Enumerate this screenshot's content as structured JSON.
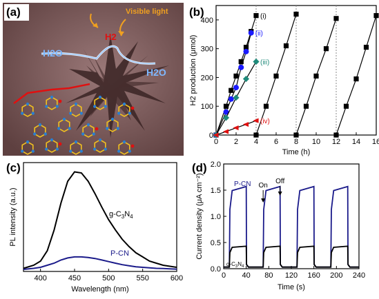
{
  "figure": {
    "panel_a": {
      "label": "(a)",
      "annotation_light": "Visible light",
      "annotation_h2": "H2",
      "annotation_h2o_left": "H2O",
      "annotation_h2o_right": "H2O",
      "colors": {
        "background": "#6e4e4c",
        "flake": "#3a2424",
        "network": "#f0c020",
        "nitrogen": "#2a7fd0",
        "arrow": "#f0a020",
        "curve": "#cfe6ff",
        "red_line": "#e01010"
      }
    },
    "panel_b": {
      "label": "(b)"
    },
    "panel_c": {
      "label": "(c)"
    },
    "panel_d": {
      "label": "(d)",
      "on_label": "On",
      "off_label": "Off"
    }
  },
  "chart_data": [
    {
      "id": "b",
      "type": "line",
      "ylabel": "H2 production (μmol)",
      "xlabel": "Time (h)",
      "xlim": [
        0,
        16
      ],
      "ylim": [
        0,
        450
      ],
      "xticks": [
        0,
        2,
        4,
        6,
        8,
        10,
        12,
        14,
        16
      ],
      "yticks": [
        0,
        100,
        200,
        300,
        400
      ],
      "grid": false,
      "legend": "inline labels",
      "dashed_vlines": [
        4,
        8,
        12
      ],
      "series": [
        {
          "name": "(i)",
          "color": "#000000",
          "marker": "square",
          "x": [
            0,
            1,
            1.5,
            2,
            2.5,
            3,
            3.5,
            4,
            4,
            5,
            6,
            7,
            8,
            8,
            9,
            10,
            11,
            12,
            12,
            13,
            14,
            15,
            16
          ],
          "y": [
            0,
            100,
            155,
            205,
            255,
            305,
            360,
            415,
            0,
            100,
            205,
            310,
            420,
            0,
            100,
            205,
            300,
            405,
            0,
            100,
            195,
            305,
            415
          ]
        },
        {
          "name": "(ii)",
          "color": "#1a1aff",
          "marker": "circle",
          "x": [
            0,
            1,
            1.5,
            2,
            2.5,
            3,
            3.5
          ],
          "y": [
            0,
            80,
            125,
            165,
            235,
            290,
            355
          ]
        },
        {
          "name": "(iii)",
          "color": "#1f8a7a",
          "marker": "diamond",
          "x": [
            0,
            1,
            2,
            3,
            4
          ],
          "y": [
            0,
            60,
            130,
            195,
            255
          ]
        },
        {
          "name": "(iv)",
          "color": "#e01010",
          "marker": "triangle-left",
          "x": [
            0,
            1,
            2,
            3,
            4
          ],
          "y": [
            0,
            12,
            25,
            37,
            50
          ]
        }
      ]
    },
    {
      "id": "c",
      "type": "line",
      "ylabel": "PL intensity (a.u.)",
      "xlabel": "Wavelength (nm)",
      "xlim": [
        375,
        600
      ],
      "xticks": [
        400,
        450,
        500,
        550,
        600
      ],
      "grid": false,
      "series": [
        {
          "name": "g-C3N4",
          "color": "#000000",
          "x": [
            375,
            390,
            400,
            410,
            420,
            430,
            440,
            450,
            460,
            470,
            480,
            490,
            500,
            510,
            520,
            530,
            540,
            550,
            560,
            570,
            580,
            590,
            600
          ],
          "y": [
            0.03,
            0.06,
            0.1,
            0.2,
            0.4,
            0.66,
            0.87,
            0.96,
            0.95,
            0.87,
            0.75,
            0.62,
            0.5,
            0.4,
            0.31,
            0.24,
            0.18,
            0.14,
            0.1,
            0.08,
            0.06,
            0.05,
            0.04
          ]
        },
        {
          "name": "P-CN",
          "color": "#1a1a8a",
          "x": [
            375,
            390,
            400,
            410,
            420,
            430,
            440,
            450,
            460,
            470,
            480,
            490,
            500,
            510,
            520,
            530,
            540,
            550,
            560,
            570,
            580,
            590,
            600
          ],
          "y": [
            0.02,
            0.03,
            0.04,
            0.06,
            0.08,
            0.11,
            0.13,
            0.14,
            0.14,
            0.135,
            0.125,
            0.11,
            0.095,
            0.08,
            0.065,
            0.055,
            0.045,
            0.04,
            0.035,
            0.03,
            0.028,
            0.025,
            0.022
          ]
        }
      ]
    },
    {
      "id": "d",
      "type": "line",
      "ylabel": "Current density (μA cm⁻²)",
      "xlabel": "Time (s)",
      "xlim": [
        0,
        240
      ],
      "ylim": [
        0,
        2.0
      ],
      "xticks": [
        0,
        40,
        80,
        120,
        160,
        200,
        240
      ],
      "yticks": [
        0.0,
        0.5,
        1.0,
        1.5,
        2.0
      ],
      "grid": false,
      "on_intervals": [
        [
          10,
          40
        ],
        [
          70,
          100
        ],
        [
          130,
          160
        ],
        [
          190,
          220
        ]
      ],
      "series": [
        {
          "name": "P-CN",
          "color": "#1a1a8a",
          "on_level": 1.57,
          "off_level": 0.03
        },
        {
          "name": "g-C3N4",
          "color": "#000000",
          "on_level": 0.43,
          "off_level": 0.03
        }
      ]
    }
  ]
}
